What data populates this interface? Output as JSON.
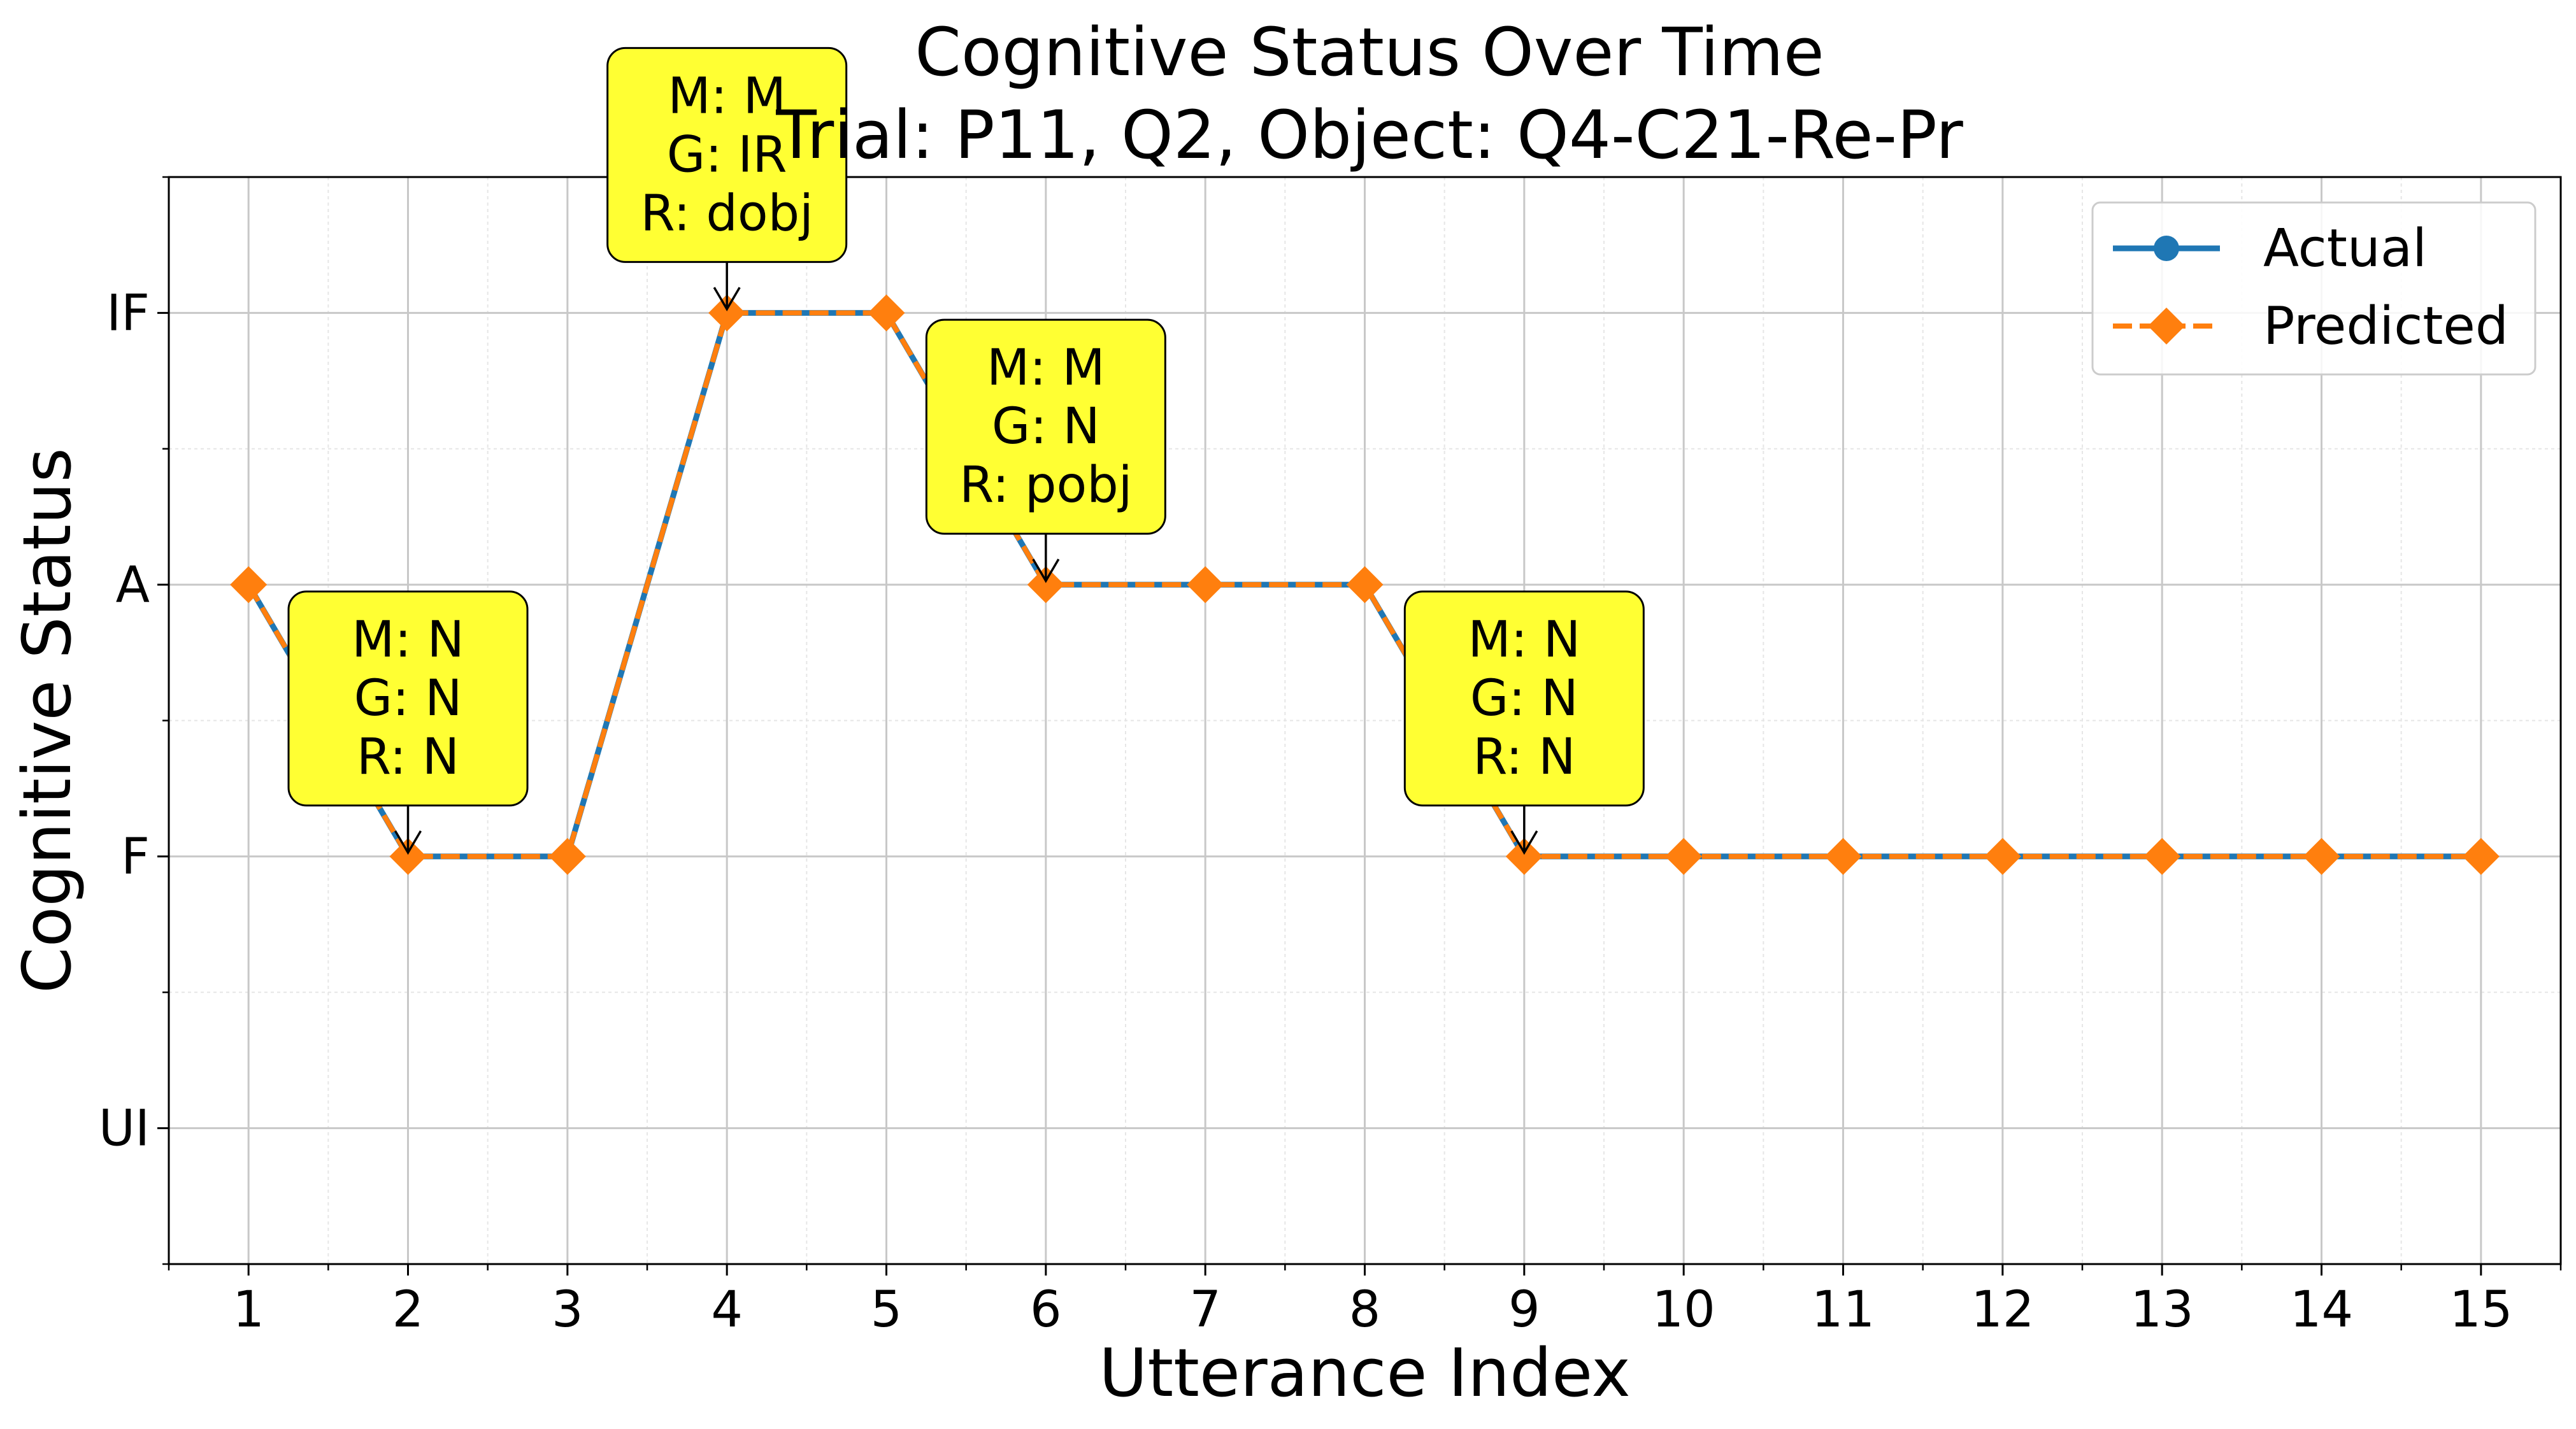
{
  "chart_data": {
    "type": "line",
    "title": "Cognitive Status Over Time",
    "subtitle": "Trial: P11, Q2, Object: Q4-C21-Re-Pr",
    "xlabel": "Utterance Index",
    "ylabel": "Cognitive Status",
    "x": [
      1,
      2,
      3,
      4,
      5,
      6,
      7,
      8,
      9,
      10,
      11,
      12,
      13,
      14,
      15
    ],
    "xlim": [
      0.5,
      15.5
    ],
    "x_ticks": [
      "1",
      "2",
      "3",
      "4",
      "5",
      "6",
      "7",
      "8",
      "9",
      "10",
      "11",
      "12",
      "13",
      "14",
      "15"
    ],
    "y_categories": [
      "UI",
      "F",
      "A",
      "IF"
    ],
    "ylim": [
      -0.5,
      3.5
    ],
    "grid": true,
    "legend_position": "top-right",
    "series": [
      {
        "name": "Actual",
        "color": "#1f77b4",
        "line_style": "solid",
        "marker": "circle",
        "values": [
          "A",
          "F",
          "F",
          "IF",
          "IF",
          "A",
          "A",
          "A",
          "F",
          "F",
          "F",
          "F",
          "F",
          "F",
          "F"
        ]
      },
      {
        "name": "Predicted",
        "color": "#ff7f0e",
        "line_style": "dashed",
        "marker": "diamond",
        "values": [
          "A",
          "F",
          "F",
          "IF",
          "IF",
          "A",
          "A",
          "A",
          "F",
          "F",
          "F",
          "F",
          "F",
          "F",
          "F"
        ]
      }
    ],
    "annotations": [
      {
        "x": 2,
        "y": "F",
        "lines": [
          "M: N",
          "G: N",
          "R: N"
        ]
      },
      {
        "x": 4,
        "y": "IF",
        "lines": [
          "M: M",
          "G: IR",
          "R: dobj"
        ]
      },
      {
        "x": 6,
        "y": "A",
        "lines": [
          "M: M",
          "G: N",
          "R: pobj"
        ]
      },
      {
        "x": 9,
        "y": "F",
        "lines": [
          "M: N",
          "G: N",
          "R: N"
        ]
      }
    ],
    "annotation_color": "#ffff33"
  }
}
